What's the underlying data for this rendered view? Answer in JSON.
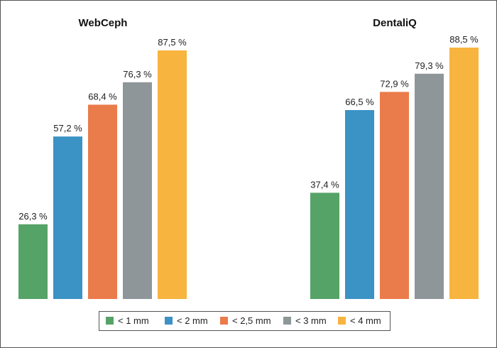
{
  "chart_data": {
    "type": "bar",
    "title": "",
    "xlabel": "",
    "ylabel": "",
    "ylim": [
      0,
      100
    ],
    "grid": false,
    "legend_position": "bottom-center",
    "value_suffix": " %",
    "decimal_separator": ",",
    "groups": [
      "WebCeph",
      "DentaliQ"
    ],
    "series": [
      {
        "name": "< 1 mm",
        "color": "#56a368",
        "values": [
          26.3,
          37.4
        ]
      },
      {
        "name": "< 2 mm",
        "color": "#3b92c5",
        "values": [
          57.2,
          66.5
        ]
      },
      {
        "name": "< 2,5 mm",
        "color": "#ea7b4b",
        "values": [
          68.4,
          72.9
        ]
      },
      {
        "name": "< 3 mm",
        "color": "#8f9699",
        "values": [
          76.3,
          79.3
        ]
      },
      {
        "name": "< 4 mm",
        "color": "#f7b43e",
        "values": [
          87.5,
          88.5
        ]
      }
    ]
  }
}
